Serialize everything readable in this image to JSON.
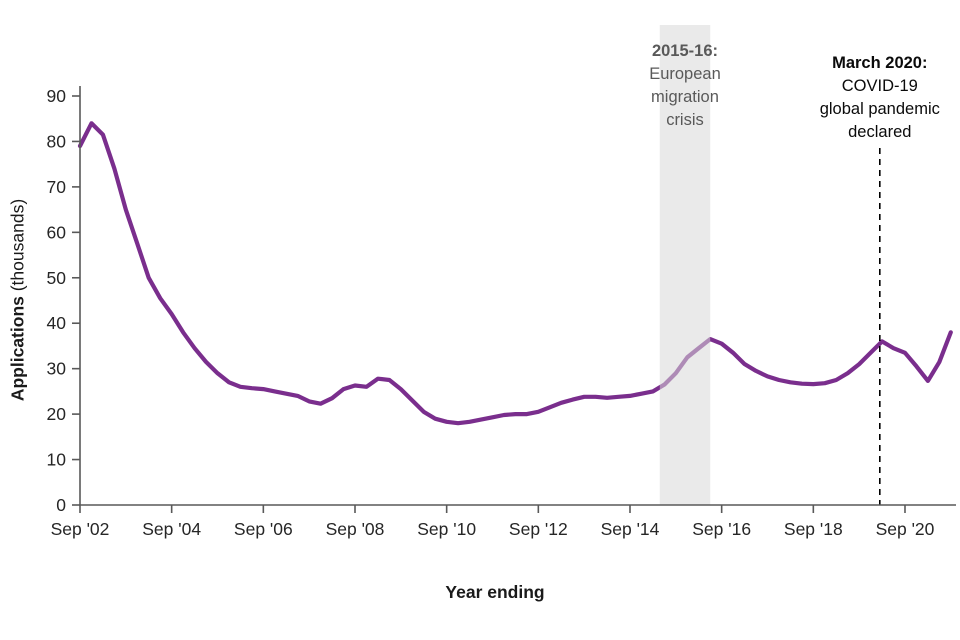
{
  "chart_data": {
    "type": "line",
    "xlabel": "Year ending",
    "ylabel": "Applications (thousands)",
    "ylabel_bold_part": "Applications",
    "ylabel_regular_part": " (thousands)",
    "ylim": [
      0,
      90
    ],
    "yticks": [
      0,
      10,
      20,
      30,
      40,
      50,
      60,
      70,
      80,
      90
    ],
    "xticks": [
      "Sep '02",
      "Sep '04",
      "Sep '06",
      "Sep '08",
      "Sep '10",
      "Sep '12",
      "Sep '14",
      "Sep '16",
      "Sep '18",
      "Sep '20"
    ],
    "x_interval": "quarterly, year ending",
    "x_first_point": "Sep 2002",
    "x_last_point": "Sep 2021",
    "x_start_year": 2002.75,
    "x_step_years": 0.25,
    "grid": false,
    "legend": false,
    "series": [
      {
        "color": "#7a2e8d",
        "values": [
          79,
          84,
          81.5,
          74,
          65,
          57.5,
          50,
          45.5,
          42,
          38,
          34.5,
          31.5,
          29,
          27,
          26,
          25.7,
          25.5,
          25,
          24.5,
          24,
          22.8,
          22.3,
          23.5,
          25.5,
          26.3,
          26,
          27.8,
          27.5,
          25.5,
          23,
          20.5,
          19,
          18.3,
          18,
          18.3,
          18.8,
          19.3,
          19.8,
          20,
          20,
          20.5,
          21.5,
          22.5,
          23.2,
          23.8,
          23.8,
          23.6,
          23.8,
          24,
          24.5,
          25,
          26.5,
          29,
          32.5,
          34.5,
          36.5,
          35.5,
          33.5,
          31,
          29.5,
          28.3,
          27.5,
          27,
          26.7,
          26.6,
          26.8,
          27.5,
          29,
          31,
          33.5,
          36,
          34.5,
          33.5,
          30.5,
          27.3,
          31.5,
          38
        ]
      }
    ],
    "annotations": {
      "band": {
        "heading": "2015-16:",
        "lines": [
          "European",
          "migration",
          "crisis"
        ],
        "x_from_year": 2015.4,
        "x_to_year": 2016.5,
        "fill": "#d9d9d9",
        "text_color": "#595959"
      },
      "vline": {
        "heading": "March 2020:",
        "lines": [
          "COVID-19",
          "global pandemic",
          "declared"
        ],
        "x_year": 2020.2,
        "style": "dashed",
        "color": "#000000"
      }
    }
  }
}
